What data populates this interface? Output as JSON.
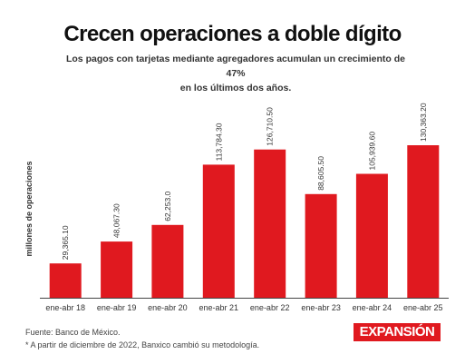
{
  "title": "Crecen operaciones a doble dígito",
  "subtitle_line1": "Los pagos con tarjetas mediante agregadores acumulan un crecimiento de 47%",
  "subtitle_line2": "en los últimos dos años.",
  "footer": {
    "source": "Fuente: Banco de México.",
    "note": "* A partir de diciembre de 2022, Banxico cambió su metodología."
  },
  "logo_text": "EXPANSIÓN",
  "colors": {
    "bar": "#e0191f",
    "axis": "#444444",
    "logo_bg": "#e0191f"
  },
  "chart_data": {
    "type": "bar",
    "title": "Crecen operaciones a doble dígito",
    "xlabel": "",
    "ylabel": "millones de operaciones",
    "categories": [
      "ene-abr 18",
      "ene-abr 19",
      "ene-abr 20",
      "ene-abr 21",
      "ene-abr 22",
      "ene-abr 23",
      "ene-abr 24",
      "ene-abr 25"
    ],
    "values": [
      29365.1,
      48067.3,
      62253.0,
      113784.3,
      126710.5,
      88605.5,
      105939.6,
      130363.2
    ],
    "value_labels": [
      "29,365.10",
      "48,067.30",
      "62,253.0",
      "113,784.30",
      "126,710.50",
      "88,605.50",
      "105,939.60",
      "130,363.20"
    ],
    "ylim": [
      0,
      130363.2
    ],
    "grid": false,
    "legend": "none"
  }
}
